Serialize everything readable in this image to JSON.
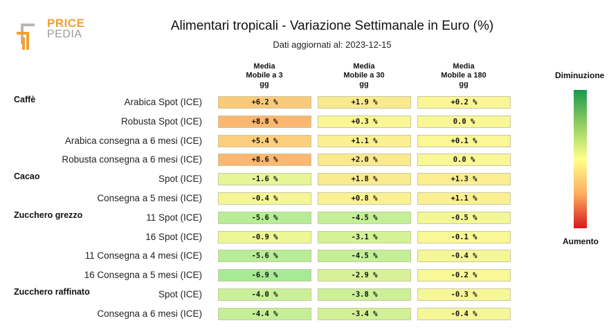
{
  "logo": {
    "line1": "PRICE",
    "line2": "PEDIA"
  },
  "title": "Alimentari tropicali - Variazione Settimanale in Euro (%)",
  "subtitle": "Dati aggiornati al: 2023-12-15",
  "columns": [
    {
      "l1": "Media",
      "l2": "Mobile a 3",
      "l3": "gg"
    },
    {
      "l1": "Media",
      "l2": "Mobile a 30",
      "l3": "gg"
    },
    {
      "l1": "Media",
      "l2": "Mobile a 180",
      "l3": "gg"
    }
  ],
  "legend": {
    "top": "Diminuzione",
    "bottom": "Aumento"
  },
  "colors": {
    "decrease": "#1a9850",
    "neutral": "#ffff8c",
    "increase": "#d7191c"
  },
  "chart_data": {
    "type": "table",
    "title": "Alimentari tropicali - Variazione Settimanale in Euro (%)",
    "columns": [
      "Media Mobile a 3 gg",
      "Media Mobile a 30 gg",
      "Media Mobile a 180 gg"
    ],
    "groups": [
      {
        "name": "Caffè",
        "rows": [
          {
            "label": "Arabica Spot (ICE)",
            "text": [
              "+6.2 %",
              "+1.9 %",
              "+0.2 %"
            ],
            "values": [
              6.2,
              1.9,
              0.2
            ]
          },
          {
            "label": "Robusta Spot (ICE)",
            "text": [
              "+8.8 %",
              "+0.3 %",
              "0.0 %"
            ],
            "values": [
              8.8,
              0.3,
              0.0
            ]
          },
          {
            "label": "Arabica consegna a 6 mesi (ICE)",
            "text": [
              "+5.4 %",
              "+1.1 %",
              "+0.1 %"
            ],
            "values": [
              5.4,
              1.1,
              0.1
            ]
          },
          {
            "label": "Robusta consegna a 6 mesi (ICE)",
            "text": [
              "+8.6 %",
              "+2.0 %",
              "0.0 %"
            ],
            "values": [
              8.6,
              2.0,
              0.0
            ]
          }
        ]
      },
      {
        "name": "Cacao",
        "rows": [
          {
            "label": "Spot (ICE)",
            "text": [
              "-1.6 %",
              "+1.8 %",
              "+1.3 %"
            ],
            "values": [
              -1.6,
              1.8,
              1.3
            ]
          },
          {
            "label": "Consegna a 5 mesi (ICE)",
            "text": [
              "-0.4 %",
              "+0.8 %",
              "+1.1 %"
            ],
            "values": [
              -0.4,
              0.8,
              1.1
            ]
          }
        ]
      },
      {
        "name": "Zucchero grezzo",
        "rows": [
          {
            "label": "11 Spot (ICE)",
            "text": [
              "-5.6 %",
              "-4.5 %",
              "-0.5 %"
            ],
            "values": [
              -5.6,
              -4.5,
              -0.5
            ]
          },
          {
            "label": "16 Spot (ICE)",
            "text": [
              "-0.9 %",
              "-3.1 %",
              "-0.1 %"
            ],
            "values": [
              -0.9,
              -3.1,
              -0.1
            ]
          },
          {
            "label": "11 Consegna a 4 mesi (ICE)",
            "text": [
              "-5.6 %",
              "-4.5 %",
              "-0.4 %"
            ],
            "values": [
              -5.6,
              -4.5,
              -0.4
            ]
          },
          {
            "label": "16 Consegna a 5 mesi (ICE)",
            "text": [
              "-6.9 %",
              "-2.9 %",
              "-0.2 %"
            ],
            "values": [
              -6.9,
              -2.9,
              -0.2
            ]
          }
        ]
      },
      {
        "name": "Zucchero raffinato",
        "rows": [
          {
            "label": "Spot (ICE)",
            "text": [
              "-4.0 %",
              "-3.8 %",
              "-0.3 %"
            ],
            "values": [
              -4.0,
              -3.8,
              -0.3
            ]
          },
          {
            "label": "Consegna a 6 mesi (ICE)",
            "text": [
              "-4.4 %",
              "-3.4 %",
              "-0.4 %"
            ],
            "values": [
              -4.4,
              -3.4,
              -0.4
            ]
          }
        ]
      }
    ]
  }
}
